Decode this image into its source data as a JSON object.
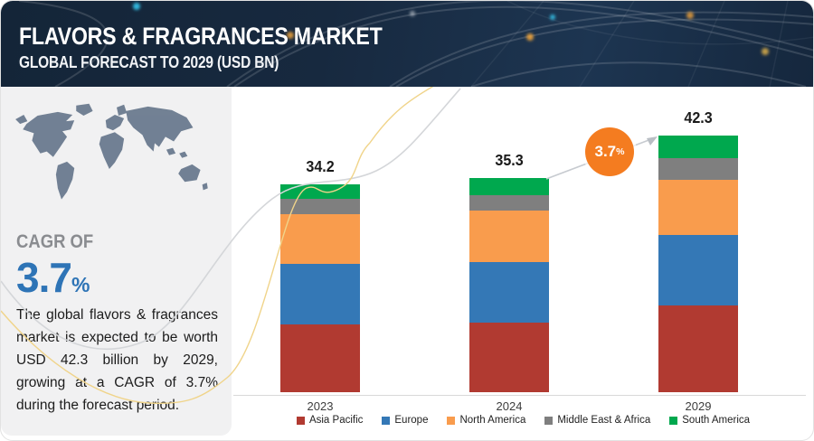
{
  "header": {
    "title": "FLAVORS & FRAGRANCES MARKET",
    "subtitle": "GLOBAL FORECAST TO 2029 (USD BN)"
  },
  "sidebar": {
    "cagr_label": "CAGR OF",
    "cagr_value": "3.7",
    "cagr_unit": "%",
    "description": "The global flavors & fragrances market is expected to be worth USD 42.3 billion by 2029, growing at a CAGR of 3.7% during the forecast period."
  },
  "chart_data": {
    "type": "bar",
    "stacked": true,
    "title": "Flavors & Fragrances Market, Global Forecast to 2029 (USD BN)",
    "categories": [
      "2023",
      "2024",
      "2029"
    ],
    "totals": [
      34.2,
      35.3,
      42.3
    ],
    "series": [
      {
        "name": "Asia Pacific",
        "color": "#b13a31",
        "values": [
          11.2,
          11.4,
          14.3
        ]
      },
      {
        "name": "Europe",
        "color": "#3478b6",
        "values": [
          9.9,
          10.0,
          11.6
        ]
      },
      {
        "name": "North America",
        "color": "#f99c4d",
        "values": [
          8.2,
          8.5,
          9.1
        ]
      },
      {
        "name": "Middle East & Africa",
        "color": "#7f7f7f",
        "values": [
          2.5,
          2.6,
          3.5
        ]
      },
      {
        "name": "South America",
        "color": "#00a84e",
        "values": [
          2.4,
          2.8,
          3.8
        ]
      }
    ],
    "annotation": {
      "text": "3.7",
      "unit": "%",
      "color": "#f47c20",
      "meaning": "CAGR between 2024 and 2029"
    },
    "ylim": [
      0,
      45
    ],
    "grid": false,
    "legend_position": "bottom"
  },
  "colors": {
    "header_bg": "#17293f",
    "sidebar_bg": "#f1f1f2",
    "cagr_blue": "#2e74b6",
    "cagr_gray": "#8a8c90",
    "map_gray": "#6b7b8f",
    "deco_gray": "#d4d6d9",
    "deco_yellow": "#f0d48a",
    "axis_line": "#d9d9d9"
  }
}
